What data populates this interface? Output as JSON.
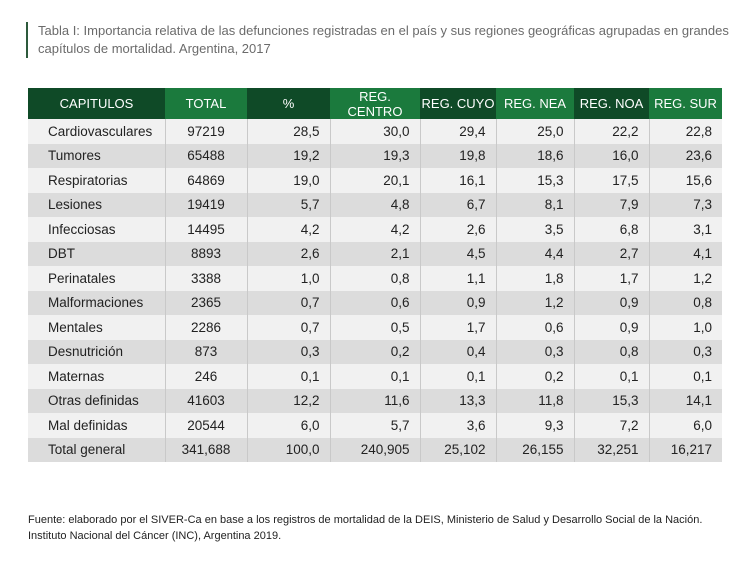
{
  "title": "Tabla I: Importancia relativa de las defunciones registradas en el país y sus regiones geográficas agrupadas en grandes capítulos de mortalidad. Argentina, 2017",
  "colors": {
    "header_dark": "#0f4a27",
    "header_bright": "#1b7a3d",
    "row_light": "#f1f1f1",
    "row_gray": "#dcdcdc"
  },
  "table": {
    "headers": [
      "CAPITULOS",
      "TOTAL",
      "%",
      "REG. CENTRO",
      "REG. CUYO",
      "REG. NEA",
      "REG. NOA",
      "REG. SUR"
    ],
    "rows": [
      [
        "Cardiovasculares",
        "97219",
        "28,5",
        "30,0",
        "29,4",
        "25,0",
        "22,2",
        "22,8"
      ],
      [
        "Tumores",
        "65488",
        "19,2",
        "19,3",
        "19,8",
        "18,6",
        "16,0",
        "23,6"
      ],
      [
        "Respiratorias",
        "64869",
        "19,0",
        "20,1",
        "16,1",
        "15,3",
        "17,5",
        "15,6"
      ],
      [
        "Lesiones",
        "19419",
        "5,7",
        "4,8",
        "6,7",
        "8,1",
        "7,9",
        "7,3"
      ],
      [
        "Infecciosas",
        "14495",
        "4,2",
        "4,2",
        "2,6",
        "3,5",
        "6,8",
        "3,1"
      ],
      [
        "DBT",
        "8893",
        "2,6",
        "2,1",
        "4,5",
        "4,4",
        "2,7",
        "4,1"
      ],
      [
        "Perinatales",
        "3388",
        "1,0",
        "0,8",
        "1,1",
        "1,8",
        "1,7",
        "1,2"
      ],
      [
        "Malformaciones",
        "2365",
        "0,7",
        "0,6",
        "0,9",
        "1,2",
        "0,9",
        "0,8"
      ],
      [
        "Mentales",
        "2286",
        "0,7",
        "0,5",
        "1,7",
        "0,6",
        "0,9",
        "1,0"
      ],
      [
        "Desnutrición",
        "873",
        "0,3",
        "0,2",
        "0,4",
        "0,3",
        "0,8",
        "0,3"
      ],
      [
        "Maternas",
        "246",
        "0,1",
        "0,1",
        "0,1",
        "0,2",
        "0,1",
        "0,1"
      ],
      [
        "Otras definidas",
        "41603",
        "12,2",
        "11,6",
        "13,3",
        "11,8",
        "15,3",
        "14,1"
      ],
      [
        "Mal definidas",
        "20544",
        "6,0",
        "5,7",
        "3,6",
        "9,3",
        "7,2",
        "6,0"
      ],
      [
        "Total general",
        "341,688",
        "100,0",
        "240,905",
        "25,102",
        "26,155",
        "32,251",
        "16,217"
      ]
    ]
  },
  "footer": {
    "line1": "Fuente: elaborado por el SIVER-Ca en base a los registros de mortalidad de la DEIS, Ministerio de Salud y Desarrollo Social de la Nación.",
    "line2": "Instituto Nacional del Cáncer (INC), Argentina 2019."
  }
}
